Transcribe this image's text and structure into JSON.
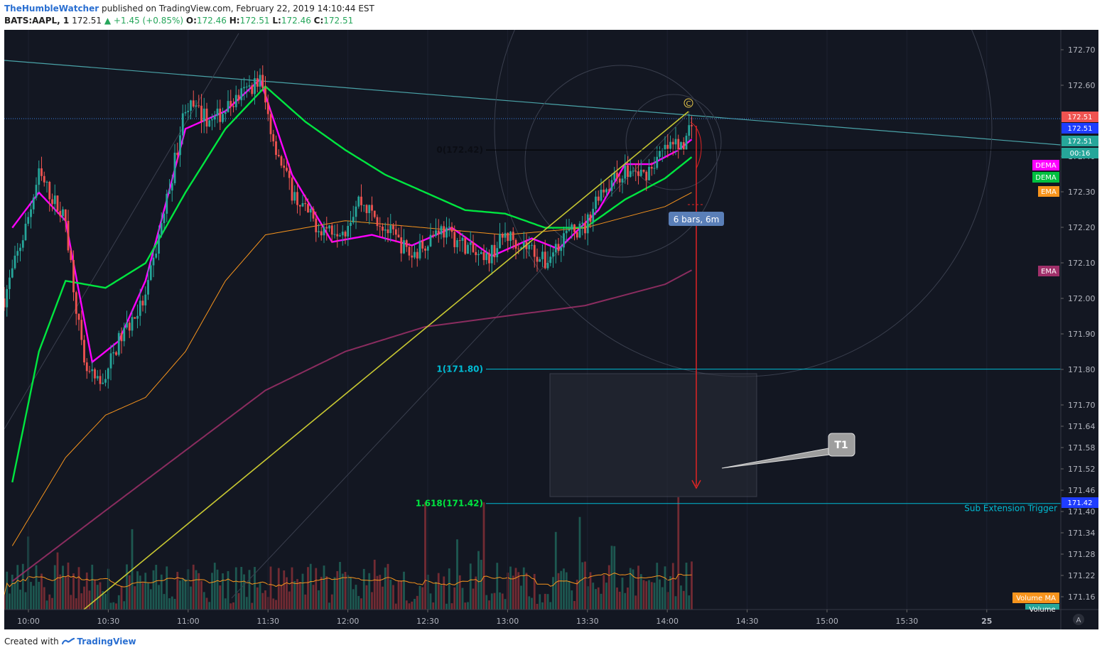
{
  "header": {
    "author": "TheHumbleWatcher",
    "published": "published on TradingView.com, February 22, 2019 14:10:44 EST",
    "symbol": "BATS:AAPL, 1",
    "last": "172.51",
    "change": "▲ +1.45 (+0.85%)",
    "ohlc_o_label": "O:",
    "ohlc_o": "172.46",
    "ohlc_h_label": "H:",
    "ohlc_h": "172.51",
    "ohlc_l_label": "L:",
    "ohlc_l": "172.46",
    "ohlc_c_label": "C:",
    "ohlc_c": "172.51"
  },
  "footer": {
    "created_with": "Created with",
    "brand": "TradingView"
  },
  "colors": {
    "background": "#131722",
    "up": "#26a69a",
    "down": "#ef5350",
    "dema_magenta": "#ff00ff",
    "dema_green": "#00e640",
    "ema_orange": "#f7941d",
    "ema_purple": "#a0306a",
    "trendline": "#c8c832",
    "fib": "#00bcd4",
    "fib_green": "#00e640",
    "arrow": "#e02424"
  },
  "chart_data": {
    "type": "candlestick",
    "symbol": "BATS:AAPL",
    "interval": "1",
    "x_ticks": [
      "10:00",
      "10:30",
      "11:00",
      "11:30",
      "12:00",
      "12:30",
      "13:00",
      "13:30",
      "14:00",
      "14:30",
      "15:00",
      "15:30",
      "25"
    ],
    "y_ticks": [
      "172.70",
      "172.60",
      "172.51",
      "172.40",
      "172.30",
      "172.20",
      "172.10",
      "172.00",
      "171.90",
      "171.80",
      "171.70",
      "171.64",
      "171.58",
      "171.52",
      "171.46",
      "171.40",
      "171.34",
      "171.28",
      "171.22",
      "171.16"
    ],
    "ylim": [
      171.12,
      172.76
    ],
    "axis_tags": [
      {
        "label": "172.51",
        "value": 172.51,
        "color": "#ef5350"
      },
      {
        "label": "172.51",
        "value": 172.51,
        "color": "#1f3dff"
      },
      {
        "label": "172.51",
        "value": 172.51,
        "color": "#26a69a"
      },
      {
        "label": "00:16",
        "color": "#26a69a"
      },
      {
        "label": "DEMA",
        "color": "#ff00ff"
      },
      {
        "label": "DEMA",
        "color": "#00c040"
      },
      {
        "label": "EMA",
        "color": "#f7941d"
      },
      {
        "label": "EMA",
        "color": "#a0306a"
      },
      {
        "label": "171.42",
        "value": 171.42,
        "color": "#1f3dff"
      },
      {
        "label": "Volume MA",
        "color": "#f7941d"
      },
      {
        "label": "Volume",
        "color": "#26a69a"
      }
    ],
    "price_path_anchors": [
      {
        "t": "09:52",
        "p": 172.0
      },
      {
        "t": "10:00",
        "p": 172.2
      },
      {
        "t": "10:05",
        "p": 172.35
      },
      {
        "t": "10:15",
        "p": 172.22
      },
      {
        "t": "10:22",
        "p": 171.8
      },
      {
        "t": "10:28",
        "p": 171.75
      },
      {
        "t": "10:35",
        "p": 171.88
      },
      {
        "t": "10:45",
        "p": 172.0
      },
      {
        "t": "10:55",
        "p": 172.35
      },
      {
        "t": "11:00",
        "p": 172.55
      },
      {
        "t": "11:10",
        "p": 172.5
      },
      {
        "t": "11:20",
        "p": 172.57
      },
      {
        "t": "11:28",
        "p": 172.62
      },
      {
        "t": "11:33",
        "p": 172.45
      },
      {
        "t": "11:40",
        "p": 172.3
      },
      {
        "t": "11:50",
        "p": 172.2
      },
      {
        "t": "12:00",
        "p": 172.2
      },
      {
        "t": "12:05",
        "p": 172.28
      },
      {
        "t": "12:15",
        "p": 172.2
      },
      {
        "t": "12:25",
        "p": 172.12
      },
      {
        "t": "12:35",
        "p": 172.2
      },
      {
        "t": "12:45",
        "p": 172.15
      },
      {
        "t": "12:52",
        "p": 172.1
      },
      {
        "t": "13:00",
        "p": 172.18
      },
      {
        "t": "13:10",
        "p": 172.14
      },
      {
        "t": "13:15",
        "p": 172.1
      },
      {
        "t": "13:22",
        "p": 172.18
      },
      {
        "t": "13:30",
        "p": 172.2
      },
      {
        "t": "13:35",
        "p": 172.3
      },
      {
        "t": "13:45",
        "p": 172.36
      },
      {
        "t": "13:52",
        "p": 172.35
      },
      {
        "t": "14:00",
        "p": 172.42
      },
      {
        "t": "14:08",
        "p": 172.45
      },
      {
        "t": "14:10",
        "p": 172.51
      }
    ],
    "indicators": [
      {
        "name": "DEMA",
        "color": "#ff00ff",
        "anchors": [
          {
            "t": "09:55",
            "p": 172.2
          },
          {
            "t": "10:05",
            "p": 172.3
          },
          {
            "t": "10:15",
            "p": 172.22
          },
          {
            "t": "10:25",
            "p": 171.82
          },
          {
            "t": "10:35",
            "p": 171.88
          },
          {
            "t": "10:45",
            "p": 172.05
          },
          {
            "t": "11:00",
            "p": 172.48
          },
          {
            "t": "11:15",
            "p": 172.53
          },
          {
            "t": "11:28",
            "p": 172.62
          },
          {
            "t": "11:40",
            "p": 172.35
          },
          {
            "t": "11:55",
            "p": 172.16
          },
          {
            "t": "12:10",
            "p": 172.18
          },
          {
            "t": "12:25",
            "p": 172.15
          },
          {
            "t": "12:40",
            "p": 172.2
          },
          {
            "t": "12:55",
            "p": 172.12
          },
          {
            "t": "13:10",
            "p": 172.17
          },
          {
            "t": "13:20",
            "p": 172.14
          },
          {
            "t": "13:35",
            "p": 172.25
          },
          {
            "t": "13:45",
            "p": 172.38
          },
          {
            "t": "13:55",
            "p": 172.38
          },
          {
            "t": "14:05",
            "p": 172.42
          },
          {
            "t": "14:10",
            "p": 172.45
          }
        ]
      },
      {
        "name": "DEMA",
        "color": "#00e640",
        "anchors": [
          {
            "t": "09:55",
            "p": 171.48
          },
          {
            "t": "10:05",
            "p": 171.85
          },
          {
            "t": "10:15",
            "p": 172.05
          },
          {
            "t": "10:30",
            "p": 172.03
          },
          {
            "t": "10:45",
            "p": 172.1
          },
          {
            "t": "11:00",
            "p": 172.3
          },
          {
            "t": "11:15",
            "p": 172.48
          },
          {
            "t": "11:30",
            "p": 172.6
          },
          {
            "t": "11:45",
            "p": 172.5
          },
          {
            "t": "12:00",
            "p": 172.42
          },
          {
            "t": "12:15",
            "p": 172.35
          },
          {
            "t": "12:30",
            "p": 172.3
          },
          {
            "t": "12:45",
            "p": 172.25
          },
          {
            "t": "13:00",
            "p": 172.24
          },
          {
            "t": "13:15",
            "p": 172.2
          },
          {
            "t": "13:30",
            "p": 172.2
          },
          {
            "t": "13:45",
            "p": 172.28
          },
          {
            "t": "14:00",
            "p": 172.34
          },
          {
            "t": "14:10",
            "p": 172.4
          }
        ]
      },
      {
        "name": "EMA",
        "color": "#f7941d",
        "anchors": [
          {
            "t": "09:55",
            "p": 171.3
          },
          {
            "t": "10:15",
            "p": 171.55
          },
          {
            "t": "10:30",
            "p": 171.67
          },
          {
            "t": "10:45",
            "p": 171.72
          },
          {
            "t": "11:00",
            "p": 171.85
          },
          {
            "t": "11:15",
            "p": 172.05
          },
          {
            "t": "11:30",
            "p": 172.18
          },
          {
            "t": "12:00",
            "p": 172.22
          },
          {
            "t": "12:30",
            "p": 172.2
          },
          {
            "t": "13:00",
            "p": 172.18
          },
          {
            "t": "13:30",
            "p": 172.2
          },
          {
            "t": "14:00",
            "p": 172.26
          },
          {
            "t": "14:10",
            "p": 172.3
          }
        ]
      },
      {
        "name": "EMA",
        "color": "#a0306a",
        "anchors": [
          {
            "t": "09:55",
            "p": 171.2
          },
          {
            "t": "10:30",
            "p": 171.4
          },
          {
            "t": "11:00",
            "p": 171.57
          },
          {
            "t": "11:30",
            "p": 171.74
          },
          {
            "t": "12:00",
            "p": 171.85
          },
          {
            "t": "12:30",
            "p": 171.92
          },
          {
            "t": "13:00",
            "p": 171.95
          },
          {
            "t": "13:30",
            "p": 171.98
          },
          {
            "t": "14:00",
            "p": 172.04
          },
          {
            "t": "14:10",
            "p": 172.08
          }
        ]
      }
    ],
    "annotations": {
      "fib_0": {
        "label": "0(172.42)",
        "value": 172.42
      },
      "fib_1": {
        "label": "1(171.80)",
        "value": 171.8
      },
      "fib_1618": {
        "label": "1.618(171.42)",
        "value": 171.42
      },
      "sub_extension": "Sub Extension Trigger",
      "bars_range": "6 bars, 6m",
      "target": "T1",
      "point_c": "C"
    }
  }
}
